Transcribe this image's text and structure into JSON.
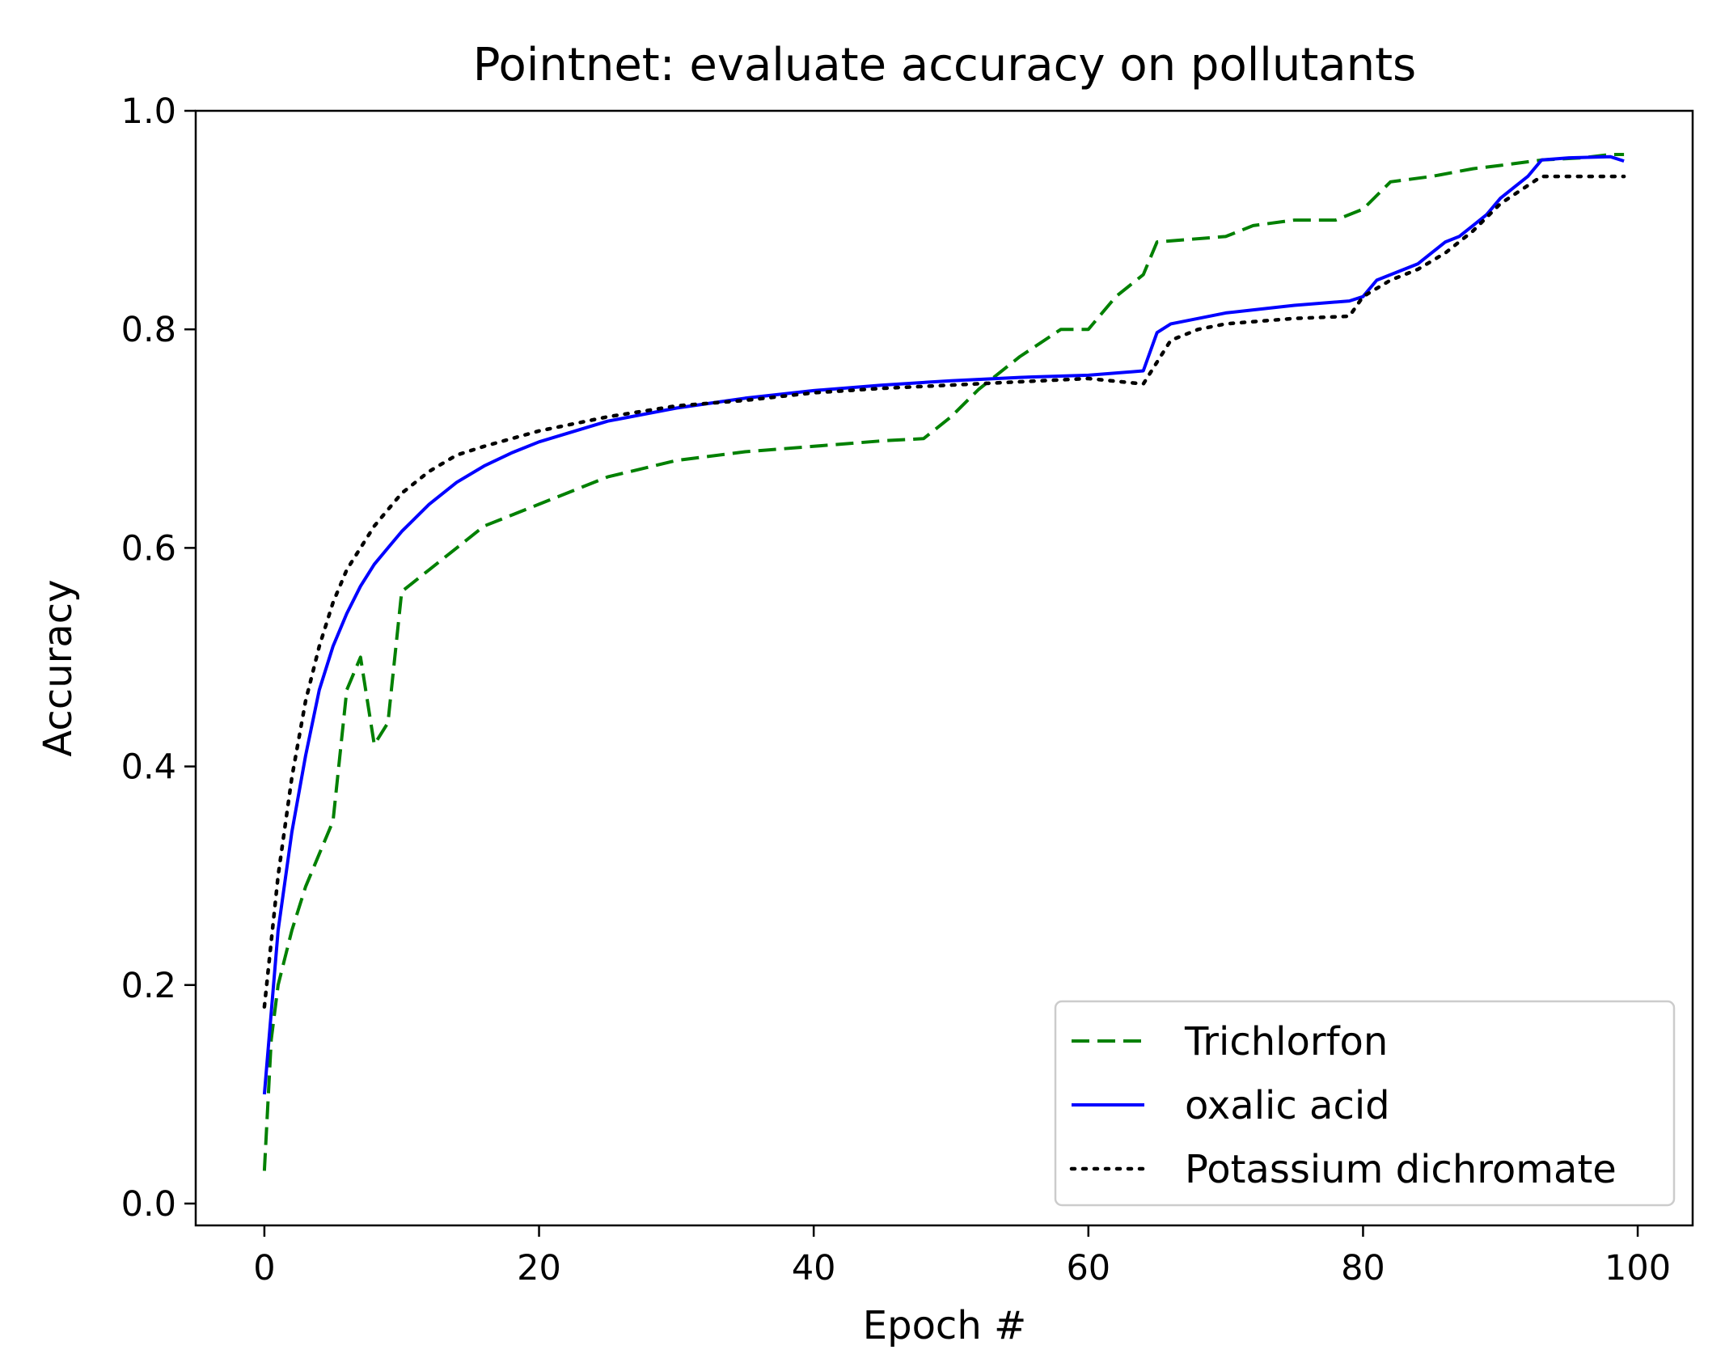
{
  "chart_data": {
    "type": "line",
    "title": "Pointnet: evaluate accuracy  on pollutants",
    "xlabel": "Epoch #",
    "ylabel": "Accuracy",
    "xlim": [
      -5,
      104
    ],
    "ylim": [
      -0.02,
      1.0
    ],
    "xticks": [
      0,
      20,
      40,
      60,
      80,
      100
    ],
    "yticks": [
      0.0,
      0.2,
      0.4,
      0.6,
      0.8,
      1.0
    ],
    "xtick_labels": [
      "0",
      "20",
      "40",
      "60",
      "80",
      "100"
    ],
    "ytick_labels": [
      "0.0",
      "0.2",
      "0.4",
      "0.6",
      "0.8",
      "1.0"
    ],
    "grid": false,
    "legend_position": "lower-right",
    "series": [
      {
        "name": "Trichlorfon",
        "color": "#008000",
        "style": "dashed",
        "x": [
          0,
          0.5,
          1,
          2,
          3,
          4,
          5,
          6,
          7,
          8,
          9,
          10,
          12,
          14,
          16,
          18,
          20,
          25,
          30,
          35,
          40,
          45,
          48,
          50,
          52,
          55,
          58,
          60,
          62,
          64,
          65,
          70,
          72,
          75,
          78,
          80,
          82,
          85,
          88,
          90,
          93,
          96,
          98,
          99
        ],
        "y": [
          0.03,
          0.15,
          0.2,
          0.25,
          0.29,
          0.32,
          0.35,
          0.47,
          0.5,
          0.42,
          0.44,
          0.56,
          0.58,
          0.6,
          0.62,
          0.63,
          0.64,
          0.665,
          0.68,
          0.688,
          0.693,
          0.698,
          0.7,
          0.72,
          0.745,
          0.775,
          0.8,
          0.8,
          0.83,
          0.85,
          0.88,
          0.885,
          0.895,
          0.9,
          0.9,
          0.91,
          0.935,
          0.94,
          0.947,
          0.95,
          0.955,
          0.957,
          0.96,
          0.96
        ]
      },
      {
        "name": "oxalic acid",
        "color": "#0000ff",
        "style": "solid",
        "x": [
          0,
          1,
          2,
          3,
          4,
          5,
          6,
          7,
          8,
          9,
          10,
          12,
          14,
          16,
          18,
          20,
          25,
          30,
          35,
          40,
          45,
          50,
          55,
          60,
          64,
          65,
          66,
          68,
          70,
          75,
          79,
          80,
          81,
          82,
          83,
          84,
          85,
          86,
          87,
          88,
          89,
          90,
          91,
          92,
          93,
          95,
          98,
          99
        ],
        "y": [
          0.1,
          0.25,
          0.34,
          0.41,
          0.47,
          0.51,
          0.54,
          0.565,
          0.585,
          0.6,
          0.615,
          0.64,
          0.66,
          0.675,
          0.687,
          0.697,
          0.716,
          0.728,
          0.737,
          0.744,
          0.749,
          0.753,
          0.756,
          0.758,
          0.762,
          0.797,
          0.805,
          0.81,
          0.815,
          0.822,
          0.826,
          0.83,
          0.845,
          0.85,
          0.855,
          0.86,
          0.87,
          0.88,
          0.885,
          0.895,
          0.905,
          0.92,
          0.93,
          0.94,
          0.955,
          0.957,
          0.958,
          0.954
        ]
      },
      {
        "name": "Potassium dichromate",
        "color": "#000000",
        "style": "dotted",
        "x": [
          0,
          1,
          2,
          3,
          4,
          5,
          6,
          7,
          8,
          9,
          10,
          12,
          14,
          16,
          18,
          20,
          25,
          30,
          35,
          40,
          45,
          50,
          55,
          60,
          64,
          65,
          66,
          68,
          70,
          75,
          79,
          80,
          82,
          84,
          86,
          88,
          90,
          93,
          96,
          99
        ],
        "y": [
          0.18,
          0.3,
          0.39,
          0.46,
          0.51,
          0.55,
          0.58,
          0.6,
          0.62,
          0.635,
          0.65,
          0.67,
          0.685,
          0.693,
          0.7,
          0.707,
          0.72,
          0.73,
          0.735,
          0.742,
          0.746,
          0.749,
          0.752,
          0.755,
          0.75,
          0.77,
          0.79,
          0.8,
          0.805,
          0.81,
          0.812,
          0.83,
          0.845,
          0.855,
          0.87,
          0.89,
          0.915,
          0.94,
          0.94,
          0.94
        ]
      }
    ]
  }
}
